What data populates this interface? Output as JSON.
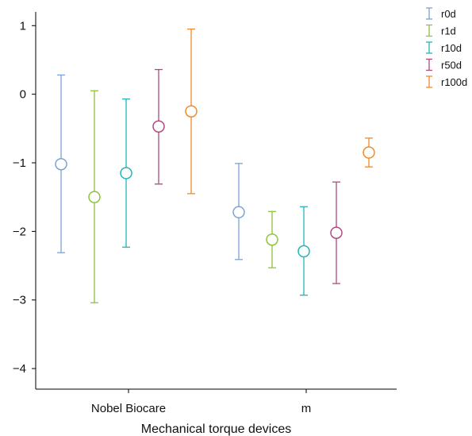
{
  "chart_data": {
    "type": "errorbar",
    "title": "",
    "xlabel": "Mechanical torque devices",
    "ylabel": "",
    "categories": [
      "Nobel Biocare",
      "m"
    ],
    "ylim": [
      -4.3,
      1.2
    ],
    "yticks": [
      1,
      0,
      -1,
      -2,
      -3,
      -4
    ],
    "ytick_labels": [
      "1",
      "0",
      "−1",
      "−2",
      "−3",
      "−4"
    ],
    "grid": false,
    "legend_position": "top-right",
    "series": [
      {
        "name": "r0d",
        "color": "#7ba3d4",
        "points": [
          {
            "category": "Nobel Biocare",
            "mean": -1.02,
            "lower": -2.31,
            "upper": 0.28
          },
          {
            "category": "m",
            "mean": -1.72,
            "lower": -2.41,
            "upper": -1.01
          }
        ]
      },
      {
        "name": "r1d",
        "color": "#8cc43c",
        "points": [
          {
            "category": "Nobel Biocare",
            "mean": -1.5,
            "lower": -3.04,
            "upper": 0.05
          },
          {
            "category": "m",
            "mean": -2.12,
            "lower": -2.53,
            "upper": -1.71
          }
        ]
      },
      {
        "name": "r10d",
        "color": "#22b6b8",
        "points": [
          {
            "category": "Nobel Biocare",
            "mean": -1.15,
            "lower": -2.23,
            "upper": -0.07
          },
          {
            "category": "m",
            "mean": -2.29,
            "lower": -2.93,
            "upper": -1.64
          }
        ]
      },
      {
        "name": "r50d",
        "color": "#b04a7e",
        "points": [
          {
            "category": "Nobel Biocare",
            "mean": -0.47,
            "lower": -1.31,
            "upper": 0.36
          },
          {
            "category": "m",
            "mean": -2.02,
            "lower": -2.76,
            "upper": -1.28
          }
        ]
      },
      {
        "name": "r100d",
        "color": "#f08a2a",
        "points": [
          {
            "category": "Nobel Biocare",
            "mean": -0.25,
            "lower": -1.45,
            "upper": 0.95
          },
          {
            "category": "m",
            "mean": -0.85,
            "lower": -1.06,
            "upper": -0.64
          }
        ]
      }
    ]
  }
}
